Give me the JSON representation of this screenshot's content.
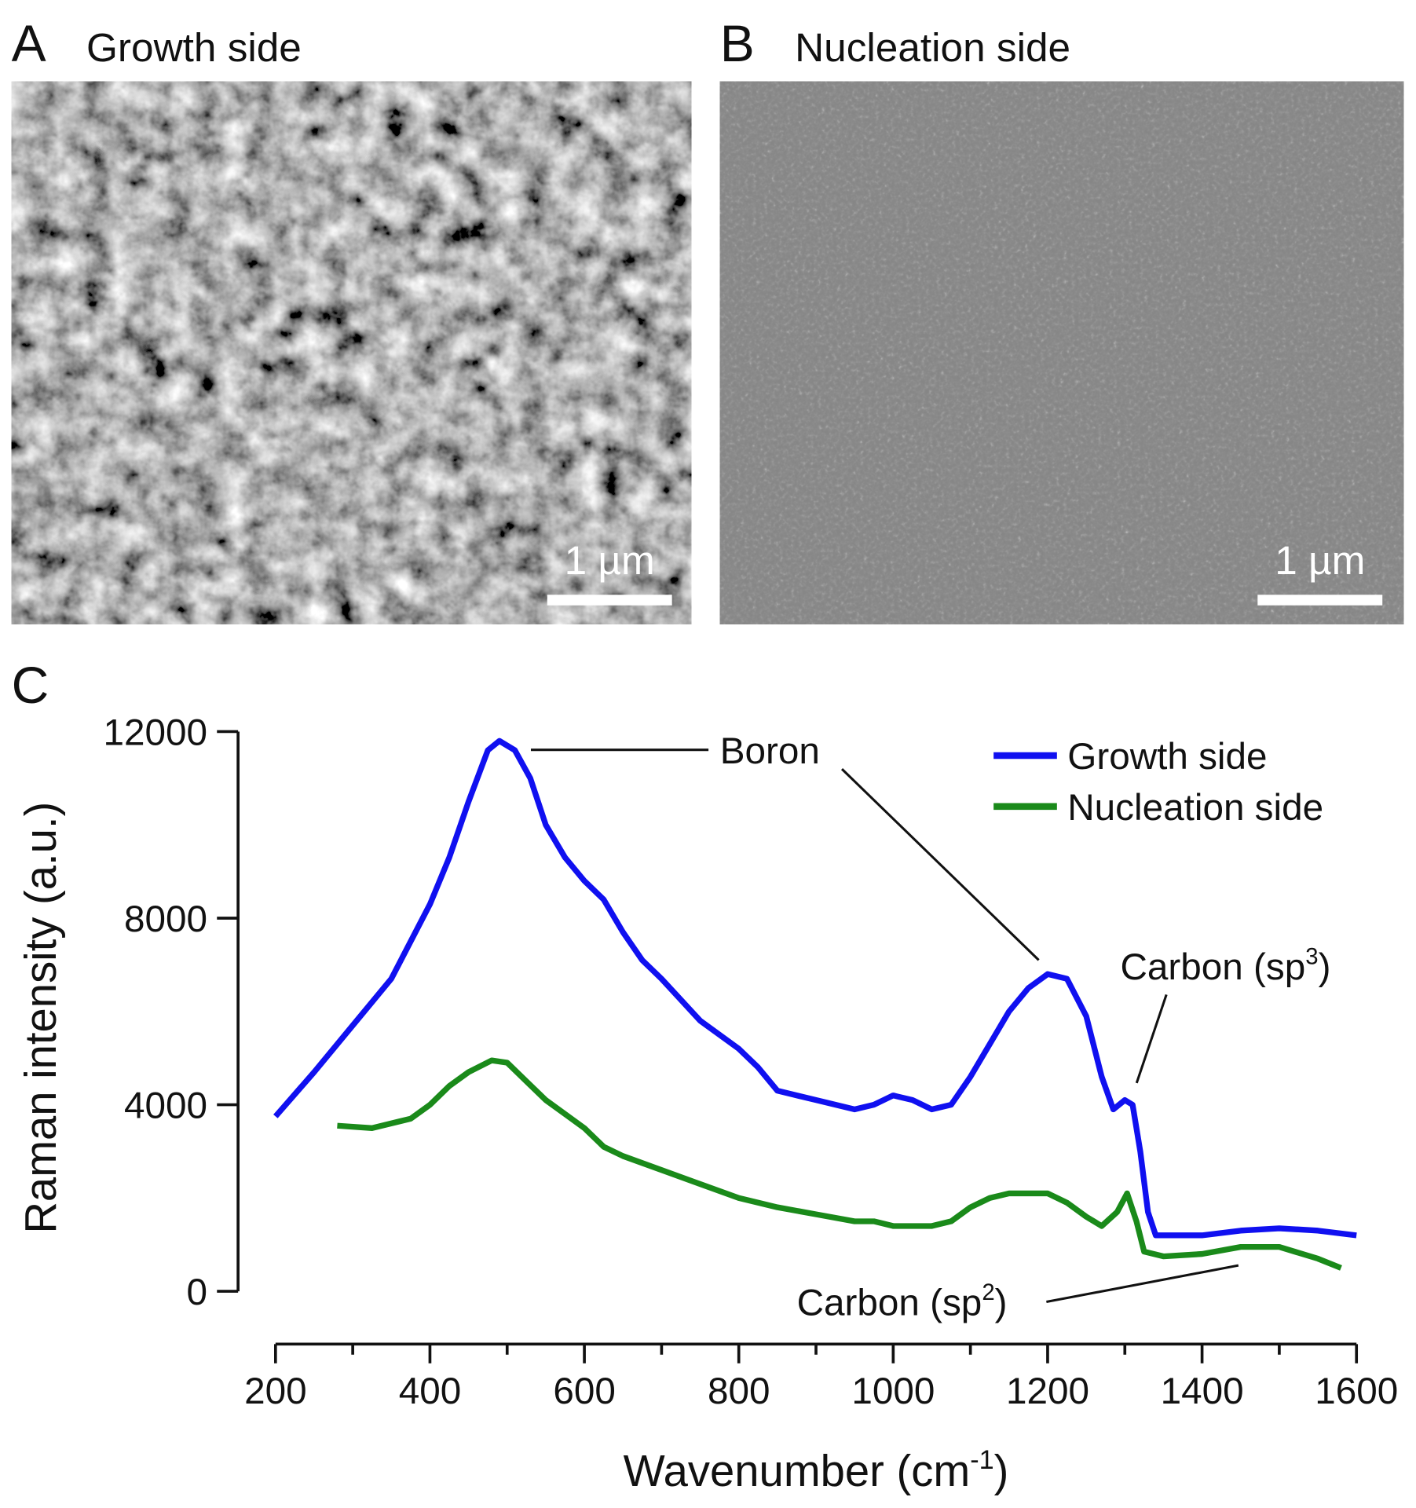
{
  "images": [
    {
      "letter": "A",
      "title": "Growth side",
      "scale_label": "1 µm"
    },
    {
      "letter": "B",
      "title": "Nucleation side",
      "scale_label": "1 µm"
    }
  ],
  "chart_data": {
    "type": "line",
    "panel_label": "C",
    "x_label": "Wavenumber (cm",
    "x_label_sup": "-1",
    "x_label_end": ")",
    "y_label": "Raman intensity (a.u.)",
    "xlim": [
      200,
      1600
    ],
    "xticks": [
      200,
      400,
      600,
      800,
      1000,
      1200,
      1400,
      1600
    ],
    "xminor_ticks": [
      300,
      500,
      700,
      900,
      1100,
      1300,
      1500
    ],
    "ylim": [
      0,
      12000
    ],
    "yticks": [
      0,
      4000,
      8000,
      12000
    ],
    "legend": "upper right",
    "series": [
      {
        "name": "Growth side",
        "color": "#1010f0",
        "x": [
          200,
          250,
          300,
          350,
          400,
          425,
          450,
          475,
          490,
          510,
          530,
          550,
          575,
          600,
          625,
          650,
          675,
          700,
          750,
          800,
          825,
          850,
          900,
          950,
          975,
          1000,
          1025,
          1050,
          1075,
          1100,
          1125,
          1150,
          1175,
          1200,
          1225,
          1250,
          1270,
          1285,
          1300,
          1310,
          1320,
          1330,
          1340,
          1400,
          1450,
          1500,
          1550,
          1600
        ],
        "values": [
          3750,
          4700,
          5700,
          6700,
          8300,
          9300,
          10500,
          11600,
          11800,
          11600,
          11000,
          10000,
          9300,
          8800,
          8400,
          7700,
          7100,
          6700,
          5800,
          5200,
          4800,
          4300,
          4100,
          3900,
          4000,
          4200,
          4100,
          3900,
          4000,
          4600,
          5300,
          6000,
          6500,
          6800,
          6700,
          5900,
          4600,
          3900,
          4100,
          4000,
          3000,
          1700,
          1200,
          1200,
          1300,
          1350,
          1300,
          1200
        ]
      },
      {
        "name": "Nucleation side",
        "color": "#1a8a1a",
        "x": [
          280,
          325,
          375,
          400,
          425,
          450,
          480,
          500,
          525,
          550,
          575,
          600,
          625,
          650,
          700,
          750,
          800,
          850,
          900,
          950,
          975,
          1000,
          1050,
          1075,
          1100,
          1125,
          1150,
          1200,
          1225,
          1250,
          1270,
          1290,
          1303,
          1315,
          1325,
          1350,
          1400,
          1450,
          1500,
          1550,
          1580
        ],
        "values": [
          3550,
          3500,
          3700,
          4000,
          4400,
          4700,
          4950,
          4900,
          4500,
          4100,
          3800,
          3500,
          3100,
          2900,
          2600,
          2300,
          2000,
          1800,
          1650,
          1500,
          1500,
          1400,
          1400,
          1500,
          1800,
          2000,
          2100,
          2100,
          1900,
          1600,
          1400,
          1700,
          2100,
          1500,
          850,
          750,
          800,
          950,
          950,
          700,
          500
        ]
      }
    ],
    "annotations": [
      {
        "text": "Boron"
      },
      {
        "text": "Carbon (sp",
        "sup": "3",
        "tail": ")"
      },
      {
        "text": "Carbon (sp",
        "sup": "2",
        "tail": ")"
      }
    ]
  }
}
